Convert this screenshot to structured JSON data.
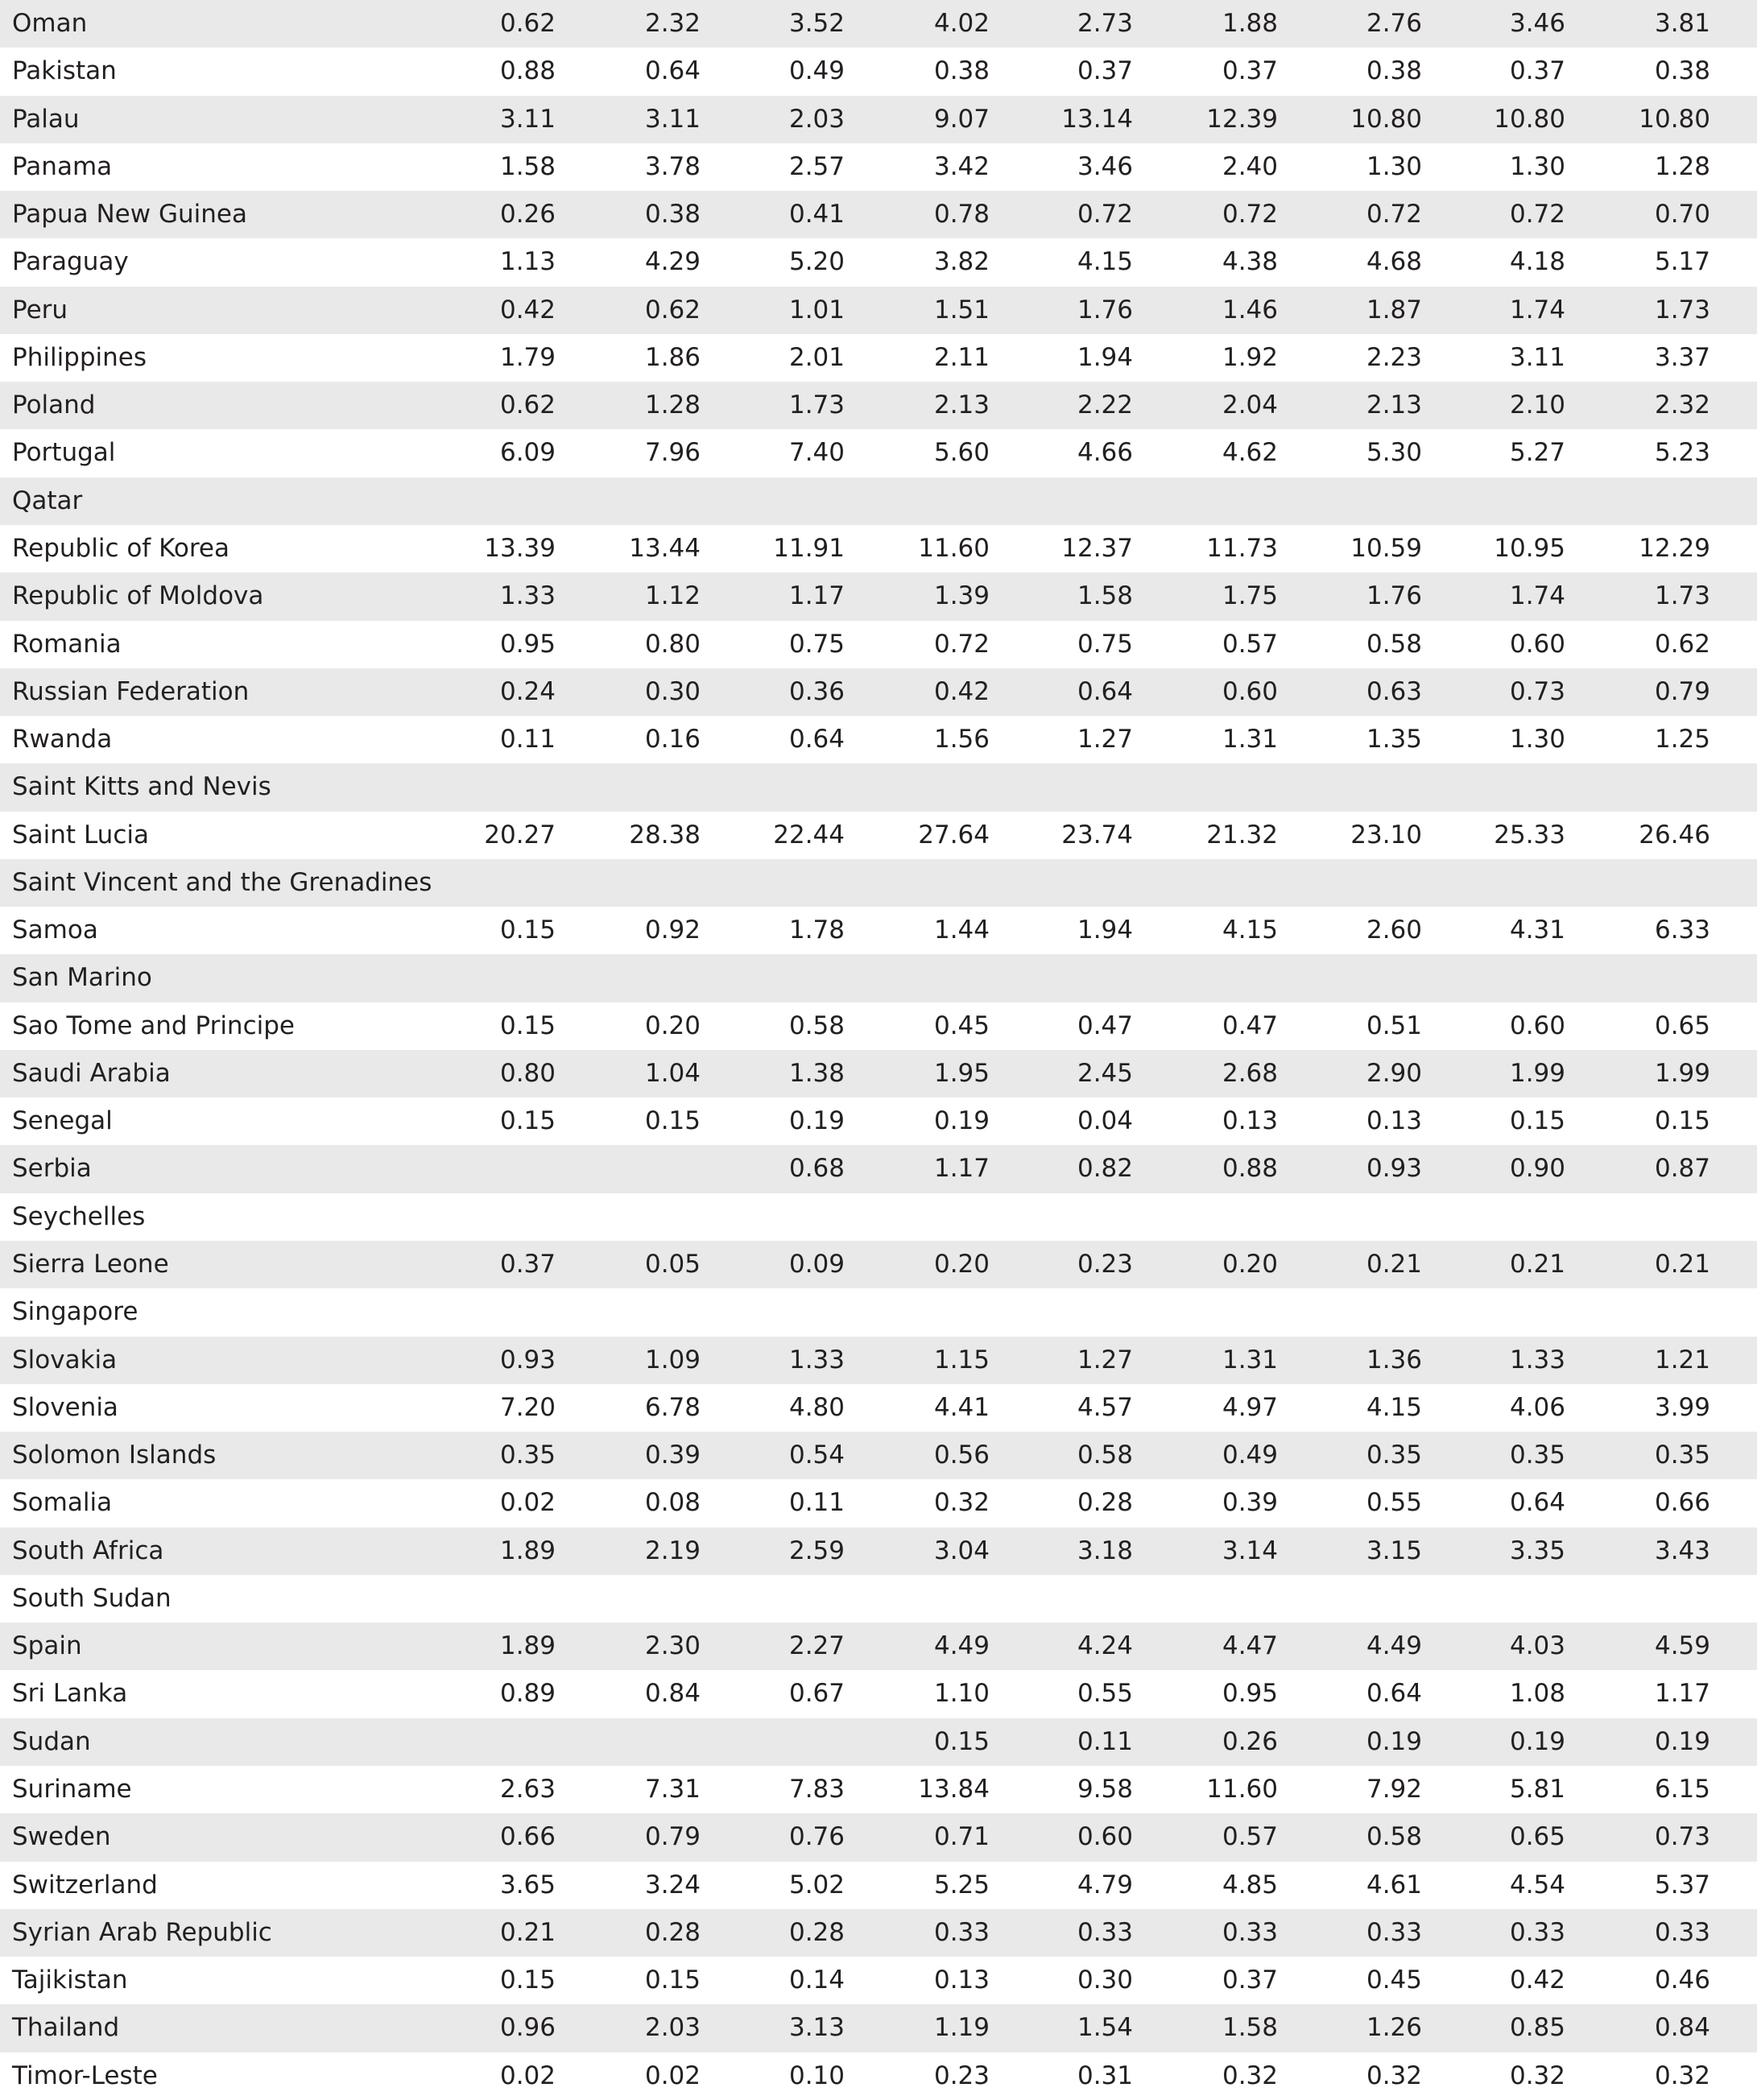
{
  "table": {
    "rows": [
      [
        "Oman",
        "0.62",
        "2.32",
        "3.52",
        "4.02",
        "2.73",
        "1.88",
        "2.76",
        "3.46",
        "3.81"
      ],
      [
        "Pakistan",
        "0.88",
        "0.64",
        "0.49",
        "0.38",
        "0.37",
        "0.37",
        "0.38",
        "0.37",
        "0.38"
      ],
      [
        "Palau",
        "3.11",
        "3.11",
        "2.03",
        "9.07",
        "13.14",
        "12.39",
        "10.80",
        "10.80",
        "10.80"
      ],
      [
        "Panama",
        "1.58",
        "3.78",
        "2.57",
        "3.42",
        "3.46",
        "2.40",
        "1.30",
        "1.30",
        "1.28"
      ],
      [
        "Papua New Guinea",
        "0.26",
        "0.38",
        "0.41",
        "0.78",
        "0.72",
        "0.72",
        "0.72",
        "0.72",
        "0.70"
      ],
      [
        "Paraguay",
        "1.13",
        "4.29",
        "5.20",
        "3.82",
        "4.15",
        "4.38",
        "4.68",
        "4.18",
        "5.17"
      ],
      [
        "Peru",
        "0.42",
        "0.62",
        "1.01",
        "1.51",
        "1.76",
        "1.46",
        "1.87",
        "1.74",
        "1.73"
      ],
      [
        "Philippines",
        "1.79",
        "1.86",
        "2.01",
        "2.11",
        "1.94",
        "1.92",
        "2.23",
        "3.11",
        "3.37"
      ],
      [
        "Poland",
        "0.62",
        "1.28",
        "1.73",
        "2.13",
        "2.22",
        "2.04",
        "2.13",
        "2.10",
        "2.32"
      ],
      [
        "Portugal",
        "6.09",
        "7.96",
        "7.40",
        "5.60",
        "4.66",
        "4.62",
        "5.30",
        "5.27",
        "5.23"
      ],
      [
        "Qatar"
      ],
      [
        "Republic of Korea",
        "13.39",
        "13.44",
        "11.91",
        "11.60",
        "12.37",
        "11.73",
        "10.59",
        "10.95",
        "12.29"
      ],
      [
        "Republic of Moldova",
        "1.33",
        "1.12",
        "1.17",
        "1.39",
        "1.58",
        "1.75",
        "1.76",
        "1.74",
        "1.73"
      ],
      [
        "Romania",
        "0.95",
        "0.80",
        "0.75",
        "0.72",
        "0.75",
        "0.57",
        "0.58",
        "0.60",
        "0.62"
      ],
      [
        "Russian Federation",
        "0.24",
        "0.30",
        "0.36",
        "0.42",
        "0.64",
        "0.60",
        "0.63",
        "0.73",
        "0.79"
      ],
      [
        "Rwanda",
        "0.11",
        "0.16",
        "0.64",
        "1.56",
        "1.27",
        "1.31",
        "1.35",
        "1.30",
        "1.25"
      ],
      [
        "Saint Kitts and Nevis"
      ],
      [
        "Saint Lucia",
        "20.27",
        "28.38",
        "22.44",
        "27.64",
        "23.74",
        "21.32",
        "23.10",
        "25.33",
        "26.46"
      ],
      [
        "Saint Vincent and the Grenadines"
      ],
      [
        "Samoa",
        "0.15",
        "0.92",
        "1.78",
        "1.44",
        "1.94",
        "4.15",
        "2.60",
        "4.31",
        "6.33"
      ],
      [
        "San Marino"
      ],
      [
        "Sao Tome and Principe",
        "0.15",
        "0.20",
        "0.58",
        "0.45",
        "0.47",
        "0.47",
        "0.51",
        "0.60",
        "0.65"
      ],
      [
        "Saudi Arabia",
        "0.80",
        "1.04",
        "1.38",
        "1.95",
        "2.45",
        "2.68",
        "2.90",
        "1.99",
        "1.99"
      ],
      [
        "Senegal",
        "0.15",
        "0.15",
        "0.19",
        "0.19",
        "0.04",
        "0.13",
        "0.13",
        "0.15",
        "0.15"
      ],
      [
        "Serbia",
        null,
        null,
        "0.68",
        "1.17",
        "0.82",
        "0.88",
        "0.93",
        "0.90",
        "0.87"
      ],
      [
        "Seychelles"
      ],
      [
        "Sierra Leone",
        "0.37",
        "0.05",
        "0.09",
        "0.20",
        "0.23",
        "0.20",
        "0.21",
        "0.21",
        "0.21"
      ],
      [
        "Singapore"
      ],
      [
        "Slovakia",
        "0.93",
        "1.09",
        "1.33",
        "1.15",
        "1.27",
        "1.31",
        "1.36",
        "1.33",
        "1.21"
      ],
      [
        "Slovenia",
        "7.20",
        "6.78",
        "4.80",
        "4.41",
        "4.57",
        "4.97",
        "4.15",
        "4.06",
        "3.99"
      ],
      [
        "Solomon Islands",
        "0.35",
        "0.39",
        "0.54",
        "0.56",
        "0.58",
        "0.49",
        "0.35",
        "0.35",
        "0.35"
      ],
      [
        "Somalia",
        "0.02",
        "0.08",
        "0.11",
        "0.32",
        "0.28",
        "0.39",
        "0.55",
        "0.64",
        "0.66"
      ],
      [
        "South Africa",
        "1.89",
        "2.19",
        "2.59",
        "3.04",
        "3.18",
        "3.14",
        "3.15",
        "3.35",
        "3.43"
      ],
      [
        "South Sudan"
      ],
      [
        "Spain",
        "1.89",
        "2.30",
        "2.27",
        "4.49",
        "4.24",
        "4.47",
        "4.49",
        "4.03",
        "4.59"
      ],
      [
        "Sri Lanka",
        "0.89",
        "0.84",
        "0.67",
        "1.10",
        "0.55",
        "0.95",
        "0.64",
        "1.08",
        "1.17"
      ],
      [
        "Sudan",
        null,
        null,
        null,
        "0.15",
        "0.11",
        "0.26",
        "0.19",
        "0.19",
        "0.19"
      ],
      [
        "Suriname",
        "2.63",
        "7.31",
        "7.83",
        "13.84",
        "9.58",
        "11.60",
        "7.92",
        "5.81",
        "6.15"
      ],
      [
        "Sweden",
        "0.66",
        "0.79",
        "0.76",
        "0.71",
        "0.60",
        "0.57",
        "0.58",
        "0.65",
        "0.73"
      ],
      [
        "Switzerland",
        "3.65",
        "3.24",
        "5.02",
        "5.25",
        "4.79",
        "4.85",
        "4.61",
        "4.54",
        "5.37"
      ],
      [
        "Syrian Arab Republic",
        "0.21",
        "0.28",
        "0.28",
        "0.33",
        "0.33",
        "0.33",
        "0.33",
        "0.33",
        "0.33"
      ],
      [
        "Tajikistan",
        "0.15",
        "0.15",
        "0.14",
        "0.13",
        "0.30",
        "0.37",
        "0.45",
        "0.42",
        "0.46"
      ],
      [
        "Thailand",
        "0.96",
        "2.03",
        "3.13",
        "1.19",
        "1.54",
        "1.58",
        "1.26",
        "0.85",
        "0.84"
      ],
      [
        "Timor-Leste",
        "0.02",
        "0.02",
        "0.10",
        "0.23",
        "0.31",
        "0.32",
        "0.32",
        "0.32",
        "0.32"
      ]
    ]
  }
}
